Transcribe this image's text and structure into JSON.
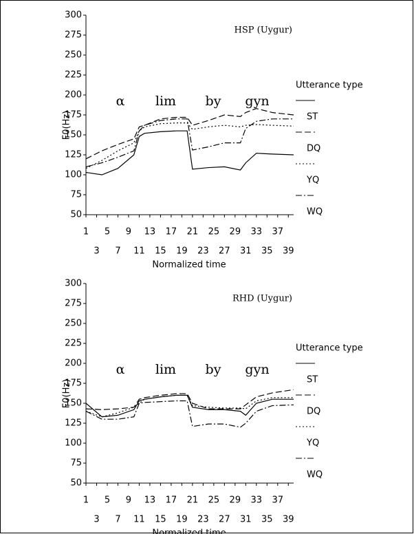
{
  "chart_data": [
    {
      "type": "line",
      "title": "HSP (Uygur)",
      "x_label": "Normalized time",
      "y_label": "F0(Hz)",
      "legend_title": "Utterance type",
      "annotations": [
        "α",
        "lim",
        "by",
        "gyn"
      ],
      "x": [
        1,
        4,
        7,
        10,
        11,
        12,
        15,
        18,
        20,
        21,
        24,
        27,
        30,
        31,
        33,
        36,
        40
      ],
      "xlim": [
        1,
        40
      ],
      "xticks": [
        1,
        3,
        5,
        7,
        9,
        11,
        13,
        15,
        17,
        19,
        21,
        23,
        25,
        27,
        29,
        31,
        33,
        35,
        37,
        39
      ],
      "ylim": [
        50,
        300
      ],
      "yticks": [
        50,
        75,
        100,
        125,
        150,
        175,
        200,
        225,
        250,
        275,
        300
      ],
      "series": [
        {
          "name": "ST",
          "color": "#000000",
          "style": "solid",
          "values": [
            103,
            100,
            108,
            125,
            148,
            152,
            154,
            155,
            155,
            107,
            109,
            110,
            106,
            115,
            127,
            126,
            125
          ]
        },
        {
          "name": "DQ",
          "color": "#000000",
          "style": "dashed",
          "values": [
            120,
            130,
            138,
            145,
            160,
            162,
            170,
            172,
            172,
            162,
            168,
            175,
            173,
            178,
            183,
            178,
            175
          ]
        },
        {
          "name": "YQ",
          "color": "#000000",
          "style": "dotted",
          "values": [
            108,
            118,
            130,
            140,
            155,
            160,
            164,
            165,
            165,
            157,
            160,
            162,
            160,
            162,
            163,
            162,
            161
          ]
        },
        {
          "name": "WQ",
          "color": "#000000",
          "style": "dashdot",
          "values": [
            110,
            115,
            122,
            130,
            155,
            162,
            168,
            170,
            170,
            131,
            135,
            140,
            140,
            158,
            167,
            170,
            170
          ]
        }
      ]
    },
    {
      "type": "line",
      "title": "RHD (Uygur)",
      "x_label": "Normalized time",
      "y_label": "F0(Hz)",
      "legend_title": "Utterance type",
      "annotations": [
        "α",
        "lim",
        "by",
        "gyn"
      ],
      "x": [
        1,
        4,
        7,
        10,
        11,
        12,
        15,
        18,
        20,
        21,
        24,
        27,
        30,
        31,
        33,
        36,
        40
      ],
      "xlim": [
        1,
        40
      ],
      "xticks": [
        1,
        3,
        5,
        7,
        9,
        11,
        13,
        15,
        17,
        19,
        21,
        23,
        25,
        27,
        29,
        31,
        33,
        35,
        37,
        39
      ],
      "ylim": [
        50,
        300
      ],
      "yticks": [
        50,
        75,
        100,
        125,
        150,
        175,
        200,
        225,
        250,
        275,
        300
      ],
      "series": [
        {
          "name": "ST",
          "color": "#000000",
          "style": "solid",
          "values": [
            150,
            133,
            135,
            142,
            153,
            155,
            158,
            160,
            160,
            145,
            142,
            142,
            140,
            135,
            150,
            155,
            155
          ]
        },
        {
          "name": "DQ",
          "color": "#000000",
          "style": "dashed",
          "values": [
            143,
            142,
            143,
            145,
            155,
            157,
            160,
            162,
            162,
            150,
            143,
            143,
            143,
            148,
            158,
            163,
            167
          ]
        },
        {
          "name": "YQ",
          "color": "#000000",
          "style": "dotted",
          "values": [
            140,
            133,
            138,
            145,
            150,
            155,
            158,
            160,
            160,
            147,
            145,
            144,
            144,
            143,
            153,
            157,
            157
          ]
        },
        {
          "name": "WQ",
          "color": "#000000",
          "style": "dashdot",
          "values": [
            140,
            130,
            130,
            133,
            150,
            151,
            152,
            153,
            153,
            121,
            124,
            124,
            120,
            125,
            140,
            147,
            148
          ]
        }
      ]
    }
  ]
}
